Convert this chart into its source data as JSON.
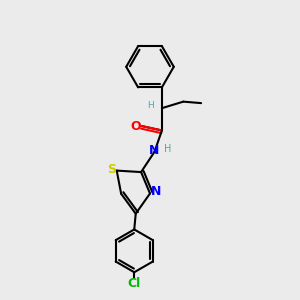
{
  "background_color": "#ebebeb",
  "atom_colors": {
    "O": "#ff0000",
    "N": "#0000ff",
    "S": "#cccc00",
    "Cl": "#00bb00",
    "C": "#000000",
    "H": "#44aaaa"
  },
  "bond_color": "#000000",
  "bond_width": 1.5,
  "figsize": [
    3.0,
    3.0
  ],
  "dpi": 100
}
